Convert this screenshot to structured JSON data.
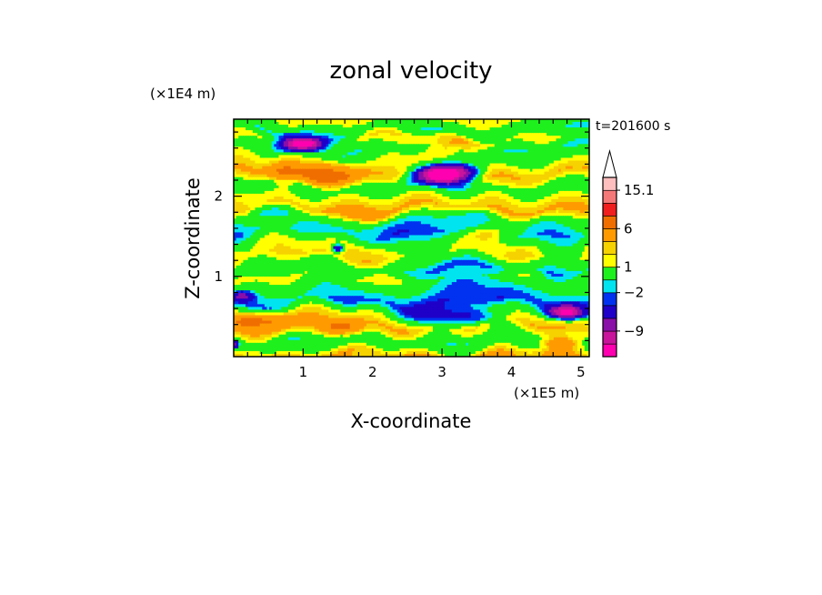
{
  "chart_data": {
    "type": "heatmap",
    "title": "zonal velocity",
    "xlabel": "X-coordinate",
    "ylabel": "Z-coordinate",
    "x_scale_label": "(×1E5 m)",
    "y_scale_label": "(×1E4 m)",
    "time_label": "t=201600 s",
    "xlim": [
      0,
      5.12
    ],
    "ylim": [
      0,
      2.96
    ],
    "x_ticks": [
      1,
      2,
      3,
      4,
      5
    ],
    "y_ticks": [
      1,
      2
    ],
    "grid": false,
    "colorbar": {
      "levels": [
        -15,
        -12,
        -9,
        -6,
        -3,
        -2,
        -1,
        1,
        2,
        3,
        6,
        9,
        12,
        15.1
      ],
      "colors": [
        "#ff00b0",
        "#c8149b",
        "#8a0ea8",
        "#1e00c8",
        "#0032f0",
        "#00e4f0",
        "#1ef01e",
        "#ffff00",
        "#f5d200",
        "#ff9b00",
        "#f06e00",
        "#f01e1e",
        "#f57878",
        "#ffbebe"
      ],
      "labels": [
        "15.1",
        "6",
        "1",
        "−2",
        "−9"
      ],
      "label_values": [
        15.1,
        6,
        1,
        -2,
        -9
      ]
    },
    "bands": [
      {
        "z": 0.0,
        "v": 3.4
      },
      {
        "z": 0.1,
        "v": 0.5
      },
      {
        "z": 0.22,
        "v": -0.5
      },
      {
        "z": 0.38,
        "v": 3.2
      },
      {
        "z": 0.52,
        "v": 1.6
      },
      {
        "z": 0.68,
        "v": -2.0
      },
      {
        "z": 0.82,
        "v": -0.5
      },
      {
        "z": 0.98,
        "v": 1.3
      },
      {
        "z": 1.1,
        "v": -0.5
      },
      {
        "z": 1.26,
        "v": 2.2
      },
      {
        "z": 1.4,
        "v": 1.3
      },
      {
        "z": 1.55,
        "v": -1.5
      },
      {
        "z": 1.72,
        "v": -0.5
      },
      {
        "z": 1.85,
        "v": 3.4
      },
      {
        "z": 2.0,
        "v": 1.2
      },
      {
        "z": 2.12,
        "v": -0.5
      },
      {
        "z": 2.28,
        "v": 3.5
      },
      {
        "z": 2.42,
        "v": 1.4
      },
      {
        "z": 2.58,
        "v": -0.5
      },
      {
        "z": 2.72,
        "v": 1.6
      },
      {
        "z": 2.82,
        "v": -0.6
      },
      {
        "z": 2.96,
        "v": 1.5
      }
    ],
    "blobs": [
      {
        "x": 1.0,
        "z": 2.66,
        "sx": 0.3,
        "sz": 0.08,
        "a": -17
      },
      {
        "x": 3.05,
        "z": 2.28,
        "sx": 0.4,
        "sz": 0.11,
        "a": -20
      },
      {
        "x": 4.8,
        "z": 0.55,
        "sx": 0.25,
        "sz": 0.08,
        "a": -14
      },
      {
        "x": 0.12,
        "z": 0.75,
        "sx": 0.15,
        "sz": 0.06,
        "a": -7
      },
      {
        "x": 0.03,
        "z": 0.15,
        "sx": 0.05,
        "sz": 0.05,
        "a": -8
      },
      {
        "x": 3.0,
        "z": 0.5,
        "sx": 0.65,
        "sz": 0.13,
        "a": -4
      },
      {
        "x": 3.6,
        "z": 0.48,
        "sx": 0.4,
        "sz": 0.1,
        "a": -3
      },
      {
        "x": 3.2,
        "z": 1.0,
        "sx": 0.6,
        "sz": 0.38,
        "a": -2.5
      },
      {
        "x": 4.6,
        "z": 1.05,
        "sx": 0.3,
        "sz": 0.3,
        "a": -2.5
      },
      {
        "x": 0.7,
        "z": 2.28,
        "sx": 0.2,
        "sz": 0.16,
        "a": 3
      },
      {
        "x": 1.3,
        "z": 2.28,
        "sx": 0.5,
        "sz": 0.12,
        "a": 5
      },
      {
        "x": 0.4,
        "z": 0.45,
        "sx": 0.45,
        "sz": 0.1,
        "a": 6
      },
      {
        "x": 1.6,
        "z": 0.35,
        "sx": 0.3,
        "sz": 0.08,
        "a": 5
      },
      {
        "x": 3.1,
        "z": 2.65,
        "sx": 0.35,
        "sz": 0.1,
        "a": 3
      },
      {
        "x": 3.7,
        "z": 1.55,
        "sx": 0.3,
        "sz": 0.1,
        "a": 3
      },
      {
        "x": 1.8,
        "z": 1.75,
        "sx": 0.4,
        "sz": 0.1,
        "a": 3
      },
      {
        "x": 4.7,
        "z": 0.18,
        "sx": 0.25,
        "sz": 0.08,
        "a": 4.5
      },
      {
        "x": 2.7,
        "z": 1.6,
        "sx": 0.45,
        "sz": 0.22,
        "a": -1.8
      },
      {
        "x": 0.4,
        "z": 1.85,
        "sx": 0.3,
        "sz": 0.12,
        "a": -2.5
      },
      {
        "x": 1.5,
        "z": 1.35,
        "sx": 0.08,
        "sz": 0.05,
        "a": -8
      },
      {
        "x": 4.8,
        "z": 2.6,
        "sx": 0.35,
        "sz": 0.25,
        "a": -1.5
      }
    ]
  }
}
